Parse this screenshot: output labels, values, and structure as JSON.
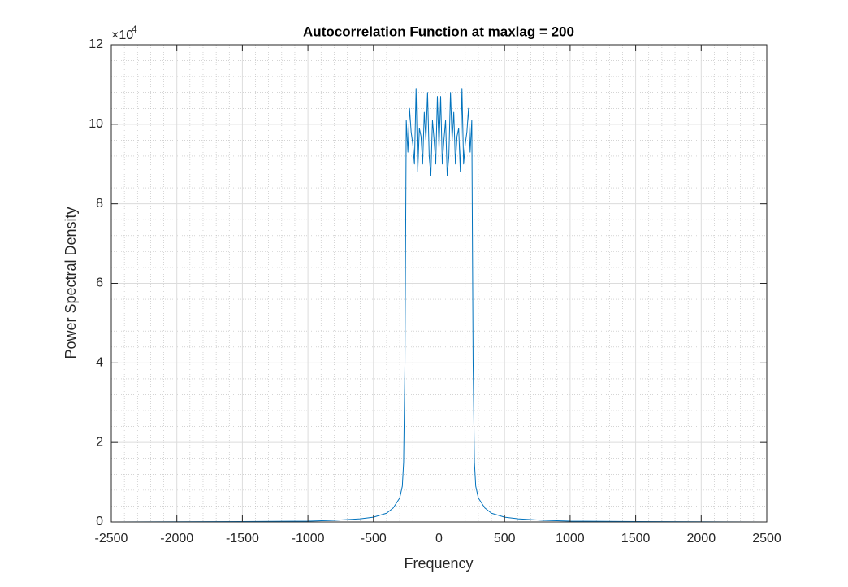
{
  "chart_data": {
    "type": "line",
    "title": "Autocorrelation Function at maxlag = 200",
    "xlabel": "Frequency",
    "ylabel": "Power Spectral Density",
    "y_scale_base": "×10",
    "y_scale_power": "4",
    "x": [
      -2500,
      -2000,
      -1500,
      -1000,
      -800,
      -600,
      -500,
      -400,
      -350,
      -300,
      -280,
      -270,
      -260,
      -250,
      -237.5,
      -225,
      -212.5,
      -200,
      -187.5,
      -175,
      -162.5,
      -150,
      -137.5,
      -125,
      -112.5,
      -100,
      -87.5,
      -75,
      -62.5,
      -50,
      -37.5,
      -25,
      -12.5,
      0,
      12.5,
      25,
      37.5,
      50,
      62.5,
      75,
      87.5,
      100,
      112.5,
      125,
      137.5,
      150,
      162.5,
      175,
      187.5,
      200,
      212.5,
      225,
      237.5,
      250,
      260,
      270,
      280,
      300,
      350,
      400,
      500,
      600,
      800,
      1000,
      1500,
      2000,
      2500
    ],
    "series": [
      {
        "color": "#0072bd",
        "values": [
          0,
          0.005,
          0.01,
          0.02,
          0.04,
          0.08,
          0.12,
          0.22,
          0.35,
          0.6,
          0.9,
          1.5,
          4,
          10.1,
          9.3,
          10.4,
          9.8,
          9.5,
          9.0,
          10.9,
          8.8,
          9.9,
          9.7,
          9.0,
          10.3,
          9.6,
          10.8,
          9.2,
          8.7,
          10.1,
          9.6,
          9.0,
          10.7,
          9.4,
          10.7,
          9.0,
          9.6,
          10.1,
          8.7,
          9.2,
          10.8,
          9.6,
          10.3,
          9.0,
          9.7,
          9.9,
          8.8,
          10.9,
          9.0,
          9.5,
          9.8,
          10.4,
          9.3,
          10.1,
          4,
          1.5,
          0.9,
          0.6,
          0.35,
          0.22,
          0.12,
          0.08,
          0.04,
          0.02,
          0.01,
          0.005,
          0
        ]
      }
    ],
    "xlim": [
      -2500,
      2500
    ],
    "ylim": [
      0,
      12
    ],
    "xticks": [
      -2500,
      -2000,
      -1500,
      -1000,
      -500,
      0,
      500,
      1000,
      1500,
      2000,
      2500
    ],
    "yticks": [
      0,
      2,
      4,
      6,
      8,
      10,
      12
    ],
    "grid": true,
    "minor_grid": true
  }
}
